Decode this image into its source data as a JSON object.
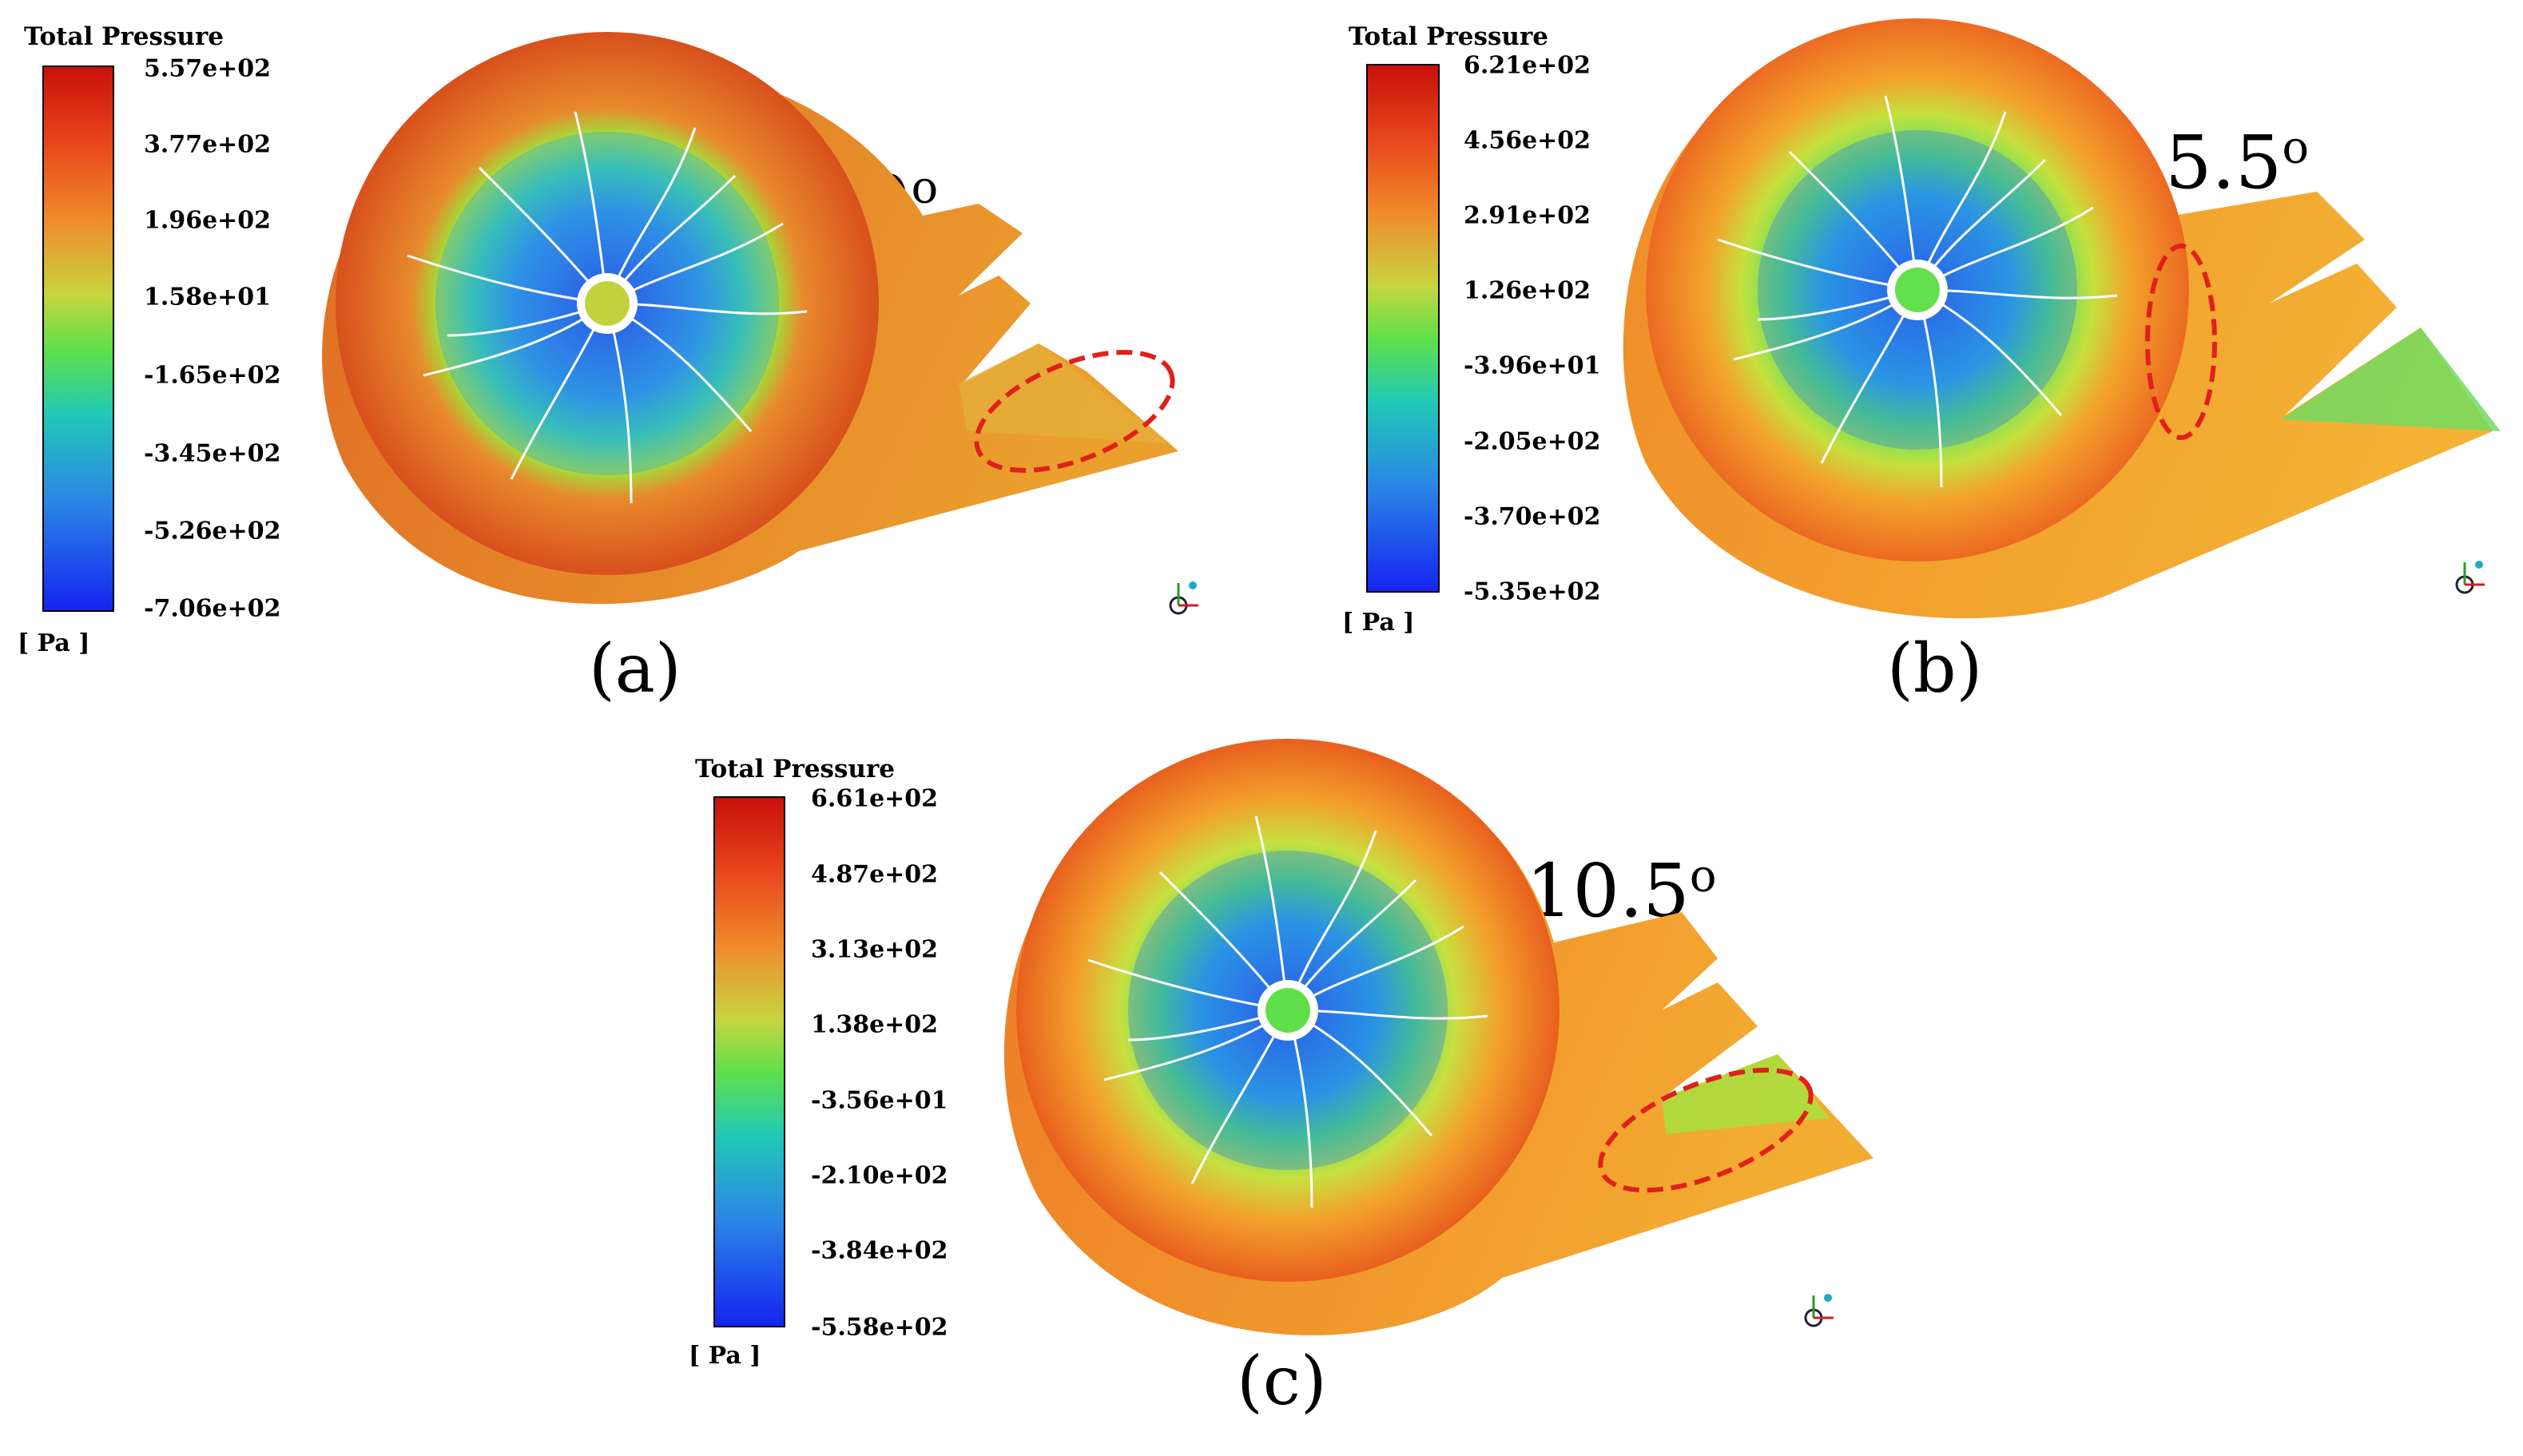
{
  "panels": [
    {
      "id": "a",
      "label": "(a)",
      "angle_text": "0",
      "angle_sup": "o",
      "legend": {
        "title": "Total Pressure",
        "ticks": [
          "5.57e+02",
          "3.77e+02",
          "1.96e+02",
          "1.58e+01",
          "-1.65e+02",
          "-3.45e+02",
          "-5.26e+02",
          "-7.06e+02"
        ],
        "unit": "[ Pa ]"
      }
    },
    {
      "id": "b",
      "label": "(b)",
      "angle_text": "5.5",
      "angle_sup": "o",
      "legend": {
        "title": "Total Pressure",
        "ticks": [
          "6.21e+02",
          "4.56e+02",
          "2.91e+02",
          "1.26e+02",
          "-3.96e+01",
          "-2.05e+02",
          "-3.70e+02",
          "-5.35e+02"
        ],
        "unit": "[ Pa ]"
      }
    },
    {
      "id": "c",
      "label": "(c)",
      "angle_text": "10.5",
      "angle_sup": "o",
      "legend": {
        "title": "Total Pressure",
        "ticks": [
          "6.61e+02",
          "4.87e+02",
          "3.13e+02",
          "1.38e+02",
          "-3.56e+01",
          "-2.10e+02",
          "-3.84e+02",
          "-5.58e+02"
        ],
        "unit": "[ Pa ]"
      }
    }
  ],
  "colors": {
    "high": "#c8100a",
    "mid_high": "#f08a2a",
    "mid": "#5fe04a",
    "mid_low": "#21c9b6",
    "low": "#1524f0",
    "highlight_ellipse": "#e0201a"
  }
}
